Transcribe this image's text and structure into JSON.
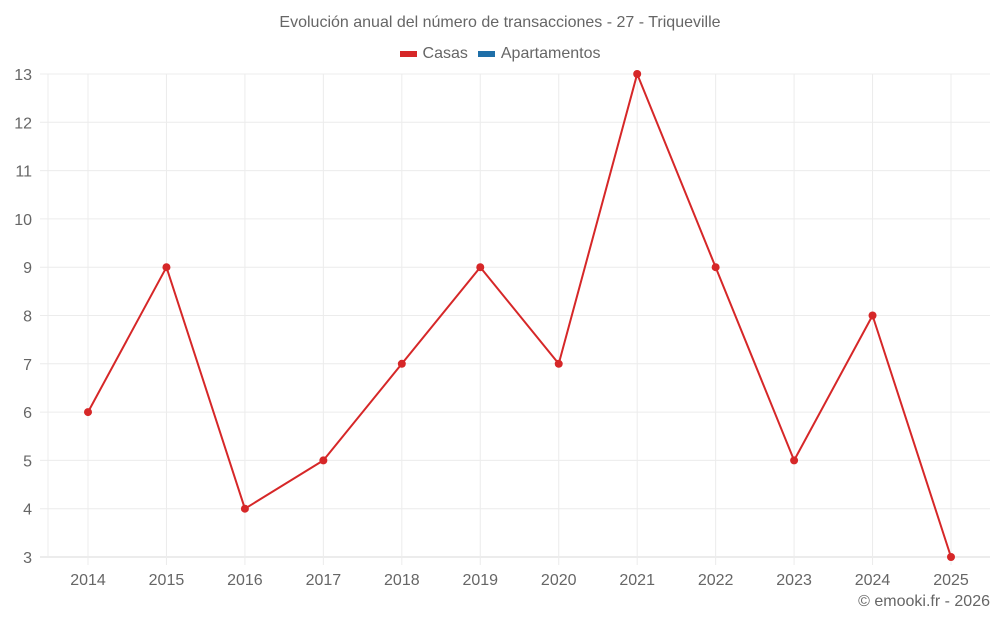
{
  "chart": {
    "title": "Evolución anual del número de transacciones - 27 - Triqueville",
    "legend": [
      {
        "label": "Casas",
        "color": "#d62728"
      },
      {
        "label": "Apartamentos",
        "color": "#1f6fa8"
      }
    ],
    "footer": "© emooki.fr - 2026"
  },
  "chart_data": {
    "type": "line",
    "title": "Evolución anual del número de transacciones - 27 - Triqueville",
    "xlabel": "",
    "ylabel": "",
    "categories": [
      "2014",
      "2015",
      "2016",
      "2017",
      "2018",
      "2019",
      "2020",
      "2021",
      "2022",
      "2023",
      "2024",
      "2025"
    ],
    "series": [
      {
        "name": "Casas",
        "color": "#d62728",
        "values": [
          6,
          9,
          4,
          5,
          7,
          9,
          7,
          13,
          9,
          5,
          8,
          3
        ]
      },
      {
        "name": "Apartamentos",
        "color": "#1f6fa8",
        "values": []
      }
    ],
    "ylim": [
      3,
      13
    ],
    "yticks": [
      3,
      4,
      5,
      6,
      7,
      8,
      9,
      10,
      11,
      12,
      13
    ],
    "grid": true,
    "legend_position": "top"
  }
}
